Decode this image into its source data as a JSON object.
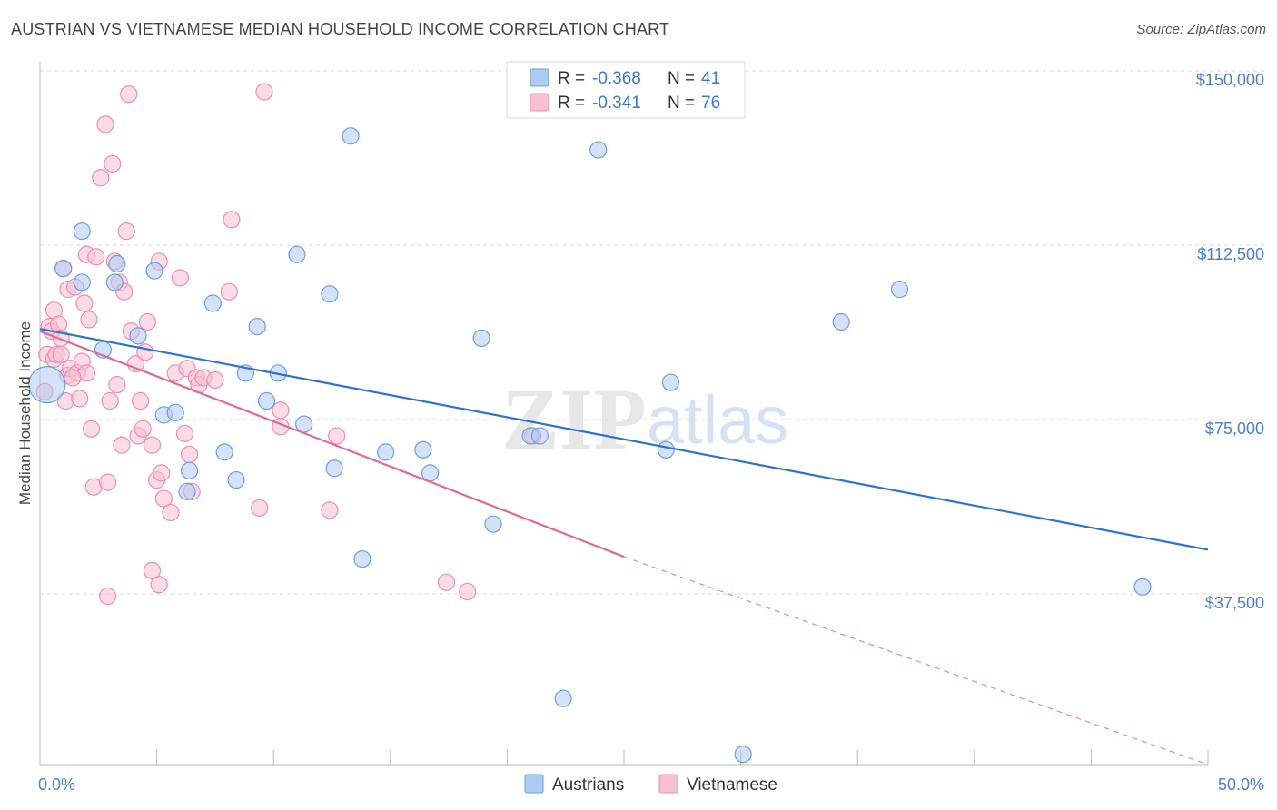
{
  "header": {
    "title": "AUSTRIAN VS VIETNAMESE MEDIAN HOUSEHOLD INCOME CORRELATION CHART",
    "source": "Source: ZipAtlas.com"
  },
  "watermark": {
    "zip": "ZIP",
    "atlas": "atlas"
  },
  "legend": {
    "austrians": {
      "r_label": "R = ",
      "r_value": "-0.368",
      "n_label": "N = ",
      "n_value": "41"
    },
    "vietnamese": {
      "r_label": "R = ",
      "r_value": "-0.341",
      "n_label": "N = ",
      "n_value": "76"
    }
  },
  "bottom_legend": {
    "austrians": "Austrians",
    "vietnamese": "Vietnamese"
  },
  "colors": {
    "austrians_fill": "#aecbf0",
    "austrians_stroke": "#6f9fdc",
    "austrians_line": "#2f72cf",
    "vietnamese_fill": "#f7c0d2",
    "vietnamese_stroke": "#ea90b0",
    "vietnamese_line": "#e0689a",
    "grid": "#d8d8d8",
    "tick_label": "#4a7fcc"
  },
  "chart_data": {
    "type": "scatter",
    "title": "AUSTRIAN VS VIETNAMESE MEDIAN HOUSEHOLD INCOME CORRELATION CHART",
    "xlabel": "",
    "ylabel": "Median Household Income",
    "xlim": [
      0,
      50
    ],
    "ylim": [
      0,
      155000
    ],
    "x_tick_labels": [
      "0.0%",
      "50.0%"
    ],
    "y_ticks": [
      37500,
      75000,
      112500,
      150000
    ],
    "y_tick_labels": [
      "$37,500",
      "$75,000",
      "$112,500",
      "$150,000"
    ],
    "grid": true,
    "legend_position": "top-center",
    "series": [
      {
        "name": "Austrians",
        "r": -0.368,
        "n": 41,
        "trend": {
          "x": [
            0,
            50
          ],
          "y": [
            94500,
            47000
          ],
          "dashed_from_x": null
        },
        "points": [
          [
            0.3,
            82500,
            20
          ],
          [
            1.8,
            115500,
            9
          ],
          [
            1.0,
            107500,
            9
          ],
          [
            3.3,
            108500,
            9
          ],
          [
            3.2,
            104500,
            9
          ],
          [
            1.8,
            104500,
            9
          ],
          [
            4.9,
            107000,
            9
          ],
          [
            2.7,
            90000,
            9
          ],
          [
            4.2,
            93000,
            9
          ],
          [
            7.4,
            100000,
            9
          ],
          [
            11.0,
            110500,
            9
          ],
          [
            13.3,
            136000,
            9
          ],
          [
            12.4,
            102000,
            9
          ],
          [
            9.3,
            95000,
            9
          ],
          [
            8.8,
            85000,
            9
          ],
          [
            10.2,
            85000,
            9
          ],
          [
            9.7,
            79000,
            9
          ],
          [
            11.3,
            74000,
            9
          ],
          [
            5.3,
            76000,
            9
          ],
          [
            5.8,
            76500,
            9
          ],
          [
            7.9,
            68000,
            9
          ],
          [
            6.4,
            64000,
            9
          ],
          [
            6.3,
            59500,
            9
          ],
          [
            8.4,
            62000,
            9
          ],
          [
            12.6,
            64500,
            9
          ],
          [
            14.8,
            68000,
            9
          ],
          [
            16.4,
            68500,
            9
          ],
          [
            16.7,
            63500,
            9
          ],
          [
            18.9,
            92500,
            9
          ],
          [
            19.4,
            52500,
            9
          ],
          [
            21.0,
            71500,
            9
          ],
          [
            13.8,
            45000,
            9
          ],
          [
            22.4,
            15000,
            9
          ],
          [
            23.9,
            133000,
            9
          ],
          [
            27.0,
            83000,
            9
          ],
          [
            26.8,
            68500,
            9
          ],
          [
            34.3,
            96000,
            9
          ],
          [
            36.8,
            103000,
            9
          ],
          [
            47.2,
            39000,
            9
          ],
          [
            30.1,
            3000,
            9
          ],
          [
            21.4,
            71500,
            9
          ]
        ]
      },
      {
        "name": "Vietnamese",
        "r": -0.341,
        "n": 76,
        "trend": {
          "x": [
            0,
            25,
            50
          ],
          "y": [
            94000,
            45500,
            -3000
          ],
          "dashed_from_x": 25
        },
        "points": [
          [
            0.2,
            81000,
            9
          ],
          [
            0.3,
            89000,
            9
          ],
          [
            0.4,
            95000,
            9
          ],
          [
            0.5,
            94000,
            9
          ],
          [
            0.6,
            98500,
            9
          ],
          [
            0.6,
            88000,
            9
          ],
          [
            0.7,
            89000,
            9
          ],
          [
            0.8,
            95500,
            9
          ],
          [
            0.9,
            92500,
            9
          ],
          [
            1.0,
            107500,
            9
          ],
          [
            1.1,
            79000,
            9
          ],
          [
            1.2,
            84500,
            9
          ],
          [
            1.2,
            103000,
            9
          ],
          [
            1.3,
            86000,
            9
          ],
          [
            1.5,
            103500,
            9
          ],
          [
            1.6,
            85000,
            9
          ],
          [
            1.7,
            79500,
            9
          ],
          [
            1.8,
            87500,
            9
          ],
          [
            1.9,
            100000,
            9
          ],
          [
            2.0,
            85000,
            9
          ],
          [
            2.0,
            110500,
            9
          ],
          [
            2.1,
            96500,
            9
          ],
          [
            2.2,
            73000,
            9
          ],
          [
            2.3,
            60500,
            9
          ],
          [
            2.4,
            110000,
            9
          ],
          [
            2.6,
            127000,
            9
          ],
          [
            2.8,
            138500,
            9
          ],
          [
            2.9,
            61500,
            9
          ],
          [
            3.0,
            79000,
            9
          ],
          [
            3.1,
            130000,
            9
          ],
          [
            3.2,
            109000,
            9
          ],
          [
            3.3,
            82500,
            9
          ],
          [
            3.4,
            104500,
            9
          ],
          [
            3.5,
            69500,
            9
          ],
          [
            3.6,
            102500,
            9
          ],
          [
            3.7,
            115500,
            9
          ],
          [
            3.8,
            145000,
            9
          ],
          [
            3.9,
            94000,
            9
          ],
          [
            4.1,
            87000,
            9
          ],
          [
            4.2,
            71500,
            9
          ],
          [
            4.3,
            79000,
            9
          ],
          [
            4.4,
            73000,
            9
          ],
          [
            4.5,
            89500,
            9
          ],
          [
            4.6,
            96000,
            9
          ],
          [
            4.8,
            69500,
            9
          ],
          [
            5.0,
            62000,
            9
          ],
          [
            5.1,
            109000,
            9
          ],
          [
            5.2,
            63500,
            9
          ],
          [
            5.3,
            58000,
            9
          ],
          [
            5.6,
            55000,
            9
          ],
          [
            5.8,
            85000,
            9
          ],
          [
            6.0,
            105500,
            9
          ],
          [
            6.2,
            72000,
            9
          ],
          [
            6.3,
            86000,
            9
          ],
          [
            6.4,
            67500,
            9
          ],
          [
            6.5,
            59500,
            9
          ],
          [
            6.7,
            84000,
            9
          ],
          [
            6.8,
            82500,
            9
          ],
          [
            7.0,
            84000,
            9
          ],
          [
            8.2,
            118000,
            9
          ],
          [
            8.1,
            102500,
            9
          ],
          [
            9.4,
            56000,
            9
          ],
          [
            9.6,
            145500,
            9
          ],
          [
            10.3,
            73500,
            9
          ],
          [
            10.3,
            77000,
            9
          ],
          [
            12.4,
            55500,
            9
          ],
          [
            12.7,
            71500,
            9
          ],
          [
            4.8,
            42500,
            9
          ],
          [
            5.1,
            39500,
            9
          ],
          [
            2.9,
            37000,
            9
          ],
          [
            17.4,
            40000,
            9
          ],
          [
            18.3,
            38000,
            9
          ],
          [
            21.1,
            71500,
            9
          ],
          [
            1.4,
            84000,
            9
          ],
          [
            0.9,
            89000,
            9
          ],
          [
            7.5,
            83500,
            9
          ]
        ]
      }
    ]
  }
}
